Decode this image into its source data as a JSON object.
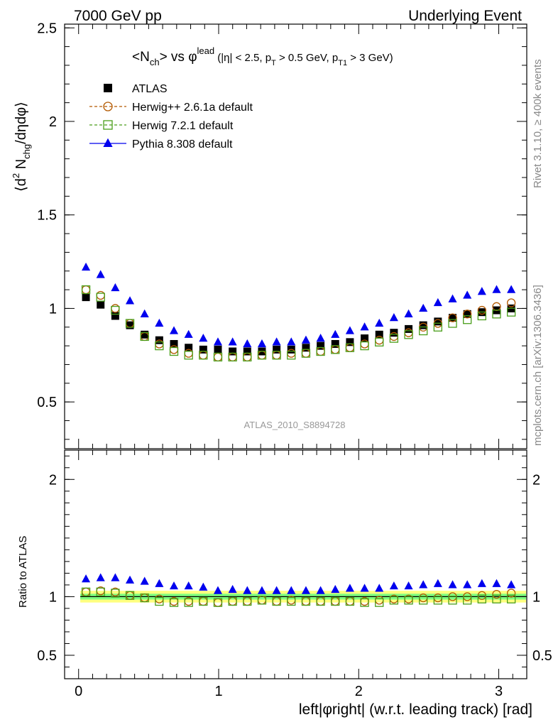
{
  "header": {
    "left": "7000 GeV pp",
    "right": "Underlying Event"
  },
  "side_labels": {
    "rivet": "Rivet 3.1.10, ≥ 400k events",
    "mcplots": "mcplots.cern.ch [arXiv:1306.3436]"
  },
  "watermark": "ATLAS_2010_S8894728",
  "chart_data": [
    {
      "type": "scatter",
      "title_parts": {
        "obs": "<N",
        "obs_sub": "ch",
        "vs": "> vs φ",
        "vs_sup": "lead",
        "cut1": " (|η| < 2.5, p",
        "cut1_sub": "T",
        "cut2": " > 0.5 GeV, p",
        "cut2_sub": "T1",
        "cut3": " > 3 GeV)"
      },
      "ylabel_parts": {
        "a": "⟨d",
        "a_sup": "2",
        "b": " N",
        "b_sub": "chg",
        "c": "/dηdφ⟩"
      },
      "xlim": [
        -0.1,
        3.2
      ],
      "ylim": [
        0.25,
        2.52
      ],
      "yticks": [
        "0.5",
        "1",
        "1.5",
        "2",
        "2.5"
      ],
      "ytick_values": [
        0.5,
        1,
        1.5,
        2,
        2.5
      ],
      "legend_position": "top-left",
      "x": [
        0.0524,
        0.1571,
        0.2618,
        0.3665,
        0.4712,
        0.576,
        0.6807,
        0.7854,
        0.8901,
        0.9948,
        1.0996,
        1.2043,
        1.309,
        1.4137,
        1.5184,
        1.6232,
        1.7279,
        1.8326,
        1.9373,
        2.042,
        2.1468,
        2.2515,
        2.3562,
        2.4609,
        2.5656,
        2.6704,
        2.7751,
        2.8798,
        2.9845,
        3.0892
      ],
      "series": [
        {
          "name": "ATLAS",
          "marker": "filled-square",
          "color": "#000000",
          "values": [
            1.06,
            1.02,
            0.96,
            0.91,
            0.86,
            0.83,
            0.81,
            0.79,
            0.78,
            0.78,
            0.77,
            0.77,
            0.77,
            0.78,
            0.78,
            0.79,
            0.8,
            0.81,
            0.82,
            0.84,
            0.86,
            0.87,
            0.89,
            0.91,
            0.93,
            0.95,
            0.97,
            0.98,
            0.99,
            1.0
          ]
        },
        {
          "name": "Herwig++ 2.6.1a default",
          "marker": "open-circle",
          "color": "#b35900",
          "values": [
            1.1,
            1.07,
            1.0,
            0.92,
            0.85,
            0.81,
            0.78,
            0.76,
            0.75,
            0.74,
            0.74,
            0.74,
            0.75,
            0.75,
            0.76,
            0.76,
            0.77,
            0.78,
            0.79,
            0.81,
            0.83,
            0.85,
            0.87,
            0.9,
            0.92,
            0.95,
            0.97,
            0.99,
            1.01,
            1.03
          ]
        },
        {
          "name": "Herwig 7.2.1 default",
          "marker": "open-square",
          "color": "#4a9e1a",
          "values": [
            1.1,
            1.06,
            0.99,
            0.92,
            0.85,
            0.8,
            0.77,
            0.75,
            0.75,
            0.74,
            0.74,
            0.74,
            0.75,
            0.75,
            0.75,
            0.76,
            0.77,
            0.78,
            0.79,
            0.8,
            0.82,
            0.84,
            0.86,
            0.88,
            0.9,
            0.92,
            0.94,
            0.96,
            0.97,
            0.98
          ]
        },
        {
          "name": "Pythia 8.308 default",
          "marker": "filled-triangle",
          "color": "#0000ee",
          "values": [
            1.22,
            1.18,
            1.11,
            1.04,
            0.97,
            0.92,
            0.88,
            0.86,
            0.84,
            0.82,
            0.82,
            0.81,
            0.81,
            0.82,
            0.82,
            0.83,
            0.84,
            0.86,
            0.88,
            0.9,
            0.92,
            0.95,
            0.97,
            1.0,
            1.03,
            1.05,
            1.07,
            1.09,
            1.1,
            1.1
          ]
        }
      ]
    },
    {
      "type": "scatter",
      "ylabel": "Ratio to ATLAS",
      "xlabel": "left|φright| (w.r.t. leading track) [rad]",
      "xlim": [
        -0.1,
        3.2
      ],
      "ylim": [
        0.3,
        2.25
      ],
      "xticks": [
        "0",
        "1",
        "2",
        "3"
      ],
      "xtick_values": [
        0,
        1,
        2,
        3
      ],
      "yticks": [
        "0.5",
        "1",
        "2"
      ],
      "ytick_values": [
        0.5,
        1,
        2
      ],
      "band_colors": {
        "inner": "#7fff7f",
        "outer": "#ffff7f"
      },
      "band_inner_halfwidth": 0.025,
      "band_outer_halfwidth": 0.05,
      "series": [
        {
          "name": "Herwig++ 2.6.1a default",
          "marker": "open-circle",
          "color": "#b35900",
          "values": [
            1.04,
            1.05,
            1.04,
            1.01,
            0.99,
            0.98,
            0.96,
            0.96,
            0.96,
            0.95,
            0.96,
            0.96,
            0.97,
            0.96,
            0.97,
            0.96,
            0.96,
            0.96,
            0.96,
            0.96,
            0.97,
            0.98,
            0.98,
            0.99,
            0.99,
            1.0,
            1.0,
            1.01,
            1.02,
            1.03
          ]
        },
        {
          "name": "Herwig 7.2.1 default",
          "marker": "open-square",
          "color": "#4a9e1a",
          "values": [
            1.04,
            1.04,
            1.03,
            1.01,
            0.99,
            0.96,
            0.95,
            0.95,
            0.96,
            0.95,
            0.96,
            0.96,
            0.97,
            0.96,
            0.96,
            0.96,
            0.96,
            0.96,
            0.96,
            0.95,
            0.95,
            0.97,
            0.97,
            0.97,
            0.97,
            0.97,
            0.97,
            0.98,
            0.98,
            0.98
          ]
        },
        {
          "name": "Pythia 8.308 default",
          "marker": "filled-triangle",
          "color": "#0000ee",
          "values": [
            1.15,
            1.16,
            1.16,
            1.14,
            1.13,
            1.11,
            1.09,
            1.09,
            1.08,
            1.05,
            1.06,
            1.05,
            1.05,
            1.05,
            1.05,
            1.05,
            1.05,
            1.06,
            1.07,
            1.07,
            1.07,
            1.09,
            1.09,
            1.1,
            1.11,
            1.1,
            1.1,
            1.11,
            1.11,
            1.1
          ]
        }
      ]
    }
  ]
}
